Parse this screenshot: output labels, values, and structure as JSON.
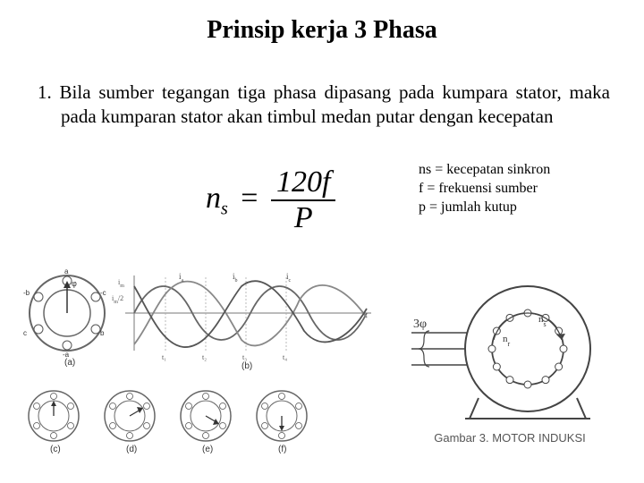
{
  "title": "Prinsip kerja 3 Phasa",
  "paragraph": "1. Bila sumber  tegangan  tiga  phasa  dipasang  pada kumpara stator, maka pada kumparan stator akan timbul medan putar dengan kecepatan",
  "formula": {
    "lhs_sym": "n",
    "lhs_sub": "s",
    "numerator": "120f",
    "denominator": "P"
  },
  "legend": {
    "l1": "ns = kecepatan sinkron",
    "l2": "f  = frekuensi sumber",
    "l3": "p  = jumlah kutup"
  },
  "fig_left": {
    "sublabels": [
      "(a)",
      "(b)",
      "(c)",
      "(d)",
      "(e)",
      "(f)"
    ],
    "phase_labels": [
      "a",
      "-c",
      "b",
      "-a",
      "c",
      "-b"
    ],
    "wave_colors": [
      "#666666",
      "#888888",
      "#555555"
    ],
    "circle_stroke": "#666666",
    "axis_color": "#777777",
    "arrow_color": "#4a4a4a"
  },
  "fig_right": {
    "label_3phi": "3φ",
    "caption": "Gambar 3. MOTOR INDUKSI",
    "stroke": "#444444",
    "slot_count": 12
  },
  "colors": {
    "bg": "#ffffff",
    "text": "#000000"
  }
}
